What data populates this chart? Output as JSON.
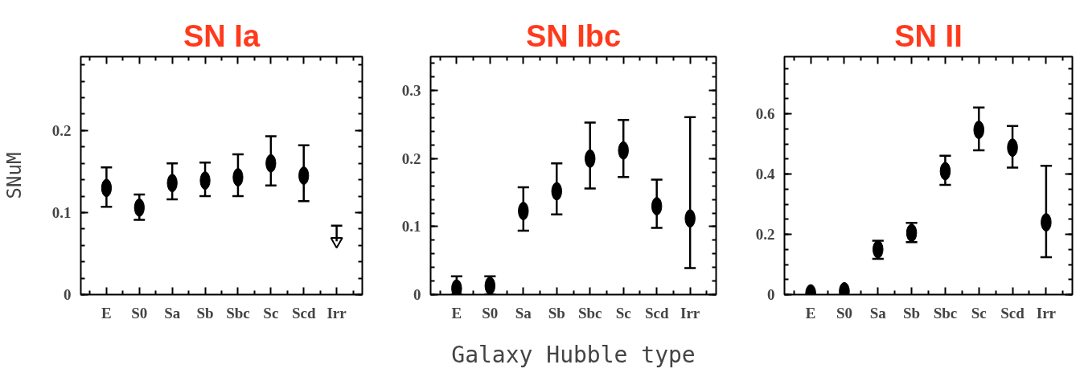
{
  "chart_data": [
    {
      "type": "scatter",
      "title": "SN Ia",
      "ylabel": "SNuM",
      "categories": [
        "E",
        "S0",
        "Sa",
        "Sb",
        "Sbc",
        "Sc",
        "Scd",
        "Irr"
      ],
      "ylim": [
        0,
        0.29
      ],
      "yticks": [
        0,
        0.1,
        0.2
      ],
      "grid": false,
      "marker": "circle",
      "series": [
        {
          "color": "#000000",
          "values": [
            0.13,
            0.106,
            0.136,
            0.139,
            0.143,
            0.16,
            0.145,
            null
          ],
          "errors": [
            [
              0.107,
              0.155
            ],
            [
              0.091,
              0.122
            ],
            [
              0.116,
              0.16
            ],
            [
              0.12,
              0.161
            ],
            [
              0.12,
              0.171
            ],
            [
              0.133,
              0.193
            ],
            [
              0.114,
              0.182
            ],
            null
          ]
        },
        {
          "color": "#000000",
          "marker": "triangle",
          "values": [
            null,
            null,
            null,
            null,
            null,
            null,
            null,
            0.065
          ],
          "errors": [
            null,
            null,
            null,
            null,
            null,
            null,
            null,
            [
              0.065,
              0.084
            ]
          ]
        }
      ]
    },
    {
      "type": "scatter",
      "title": "SN Ibc",
      "xlabel": "Galaxy Hubble type",
      "categories": [
        "E",
        "S0",
        "Sa",
        "Sb",
        "Sbc",
        "Sc",
        "Scd",
        "Irr"
      ],
      "ylim": [
        0,
        0.35
      ],
      "yticks": [
        0,
        0.1,
        0.2,
        0.3
      ],
      "grid": false,
      "marker": "circle",
      "series": [
        {
          "color": "#000000",
          "values": [
            0.009,
            0.013,
            0.123,
            0.152,
            0.2,
            0.212,
            0.13,
            0.112
          ],
          "errors": [
            [
              0.0,
              0.027
            ],
            [
              0.0,
              0.027
            ],
            [
              0.094,
              0.158
            ],
            [
              0.118,
              0.193
            ],
            [
              0.156,
              0.253
            ],
            [
              0.173,
              0.257
            ],
            [
              0.098,
              0.169
            ],
            [
              0.039,
              0.261
            ]
          ]
        }
      ]
    },
    {
      "type": "scatter",
      "title": "SN II",
      "categories": [
        "E",
        "S0",
        "Sa",
        "Sb",
        "Sbc",
        "Sc",
        "Scd",
        "Irr"
      ],
      "ylim": [
        0,
        0.79
      ],
      "yticks": [
        0,
        0.2,
        0.4,
        0.6
      ],
      "grid": false,
      "marker": "circle",
      "series": [
        {
          "color": "#000000",
          "values": [
            0.004,
            0.011,
            0.15,
            0.205,
            0.41,
            0.547,
            0.488,
            0.24
          ],
          "errors": [
            null,
            null,
            [
              0.119,
              0.179
            ],
            [
              0.174,
              0.238
            ],
            [
              0.364,
              0.461
            ],
            [
              0.479,
              0.621
            ],
            [
              0.422,
              0.56
            ],
            [
              0.124,
              0.428
            ]
          ]
        }
      ]
    }
  ]
}
